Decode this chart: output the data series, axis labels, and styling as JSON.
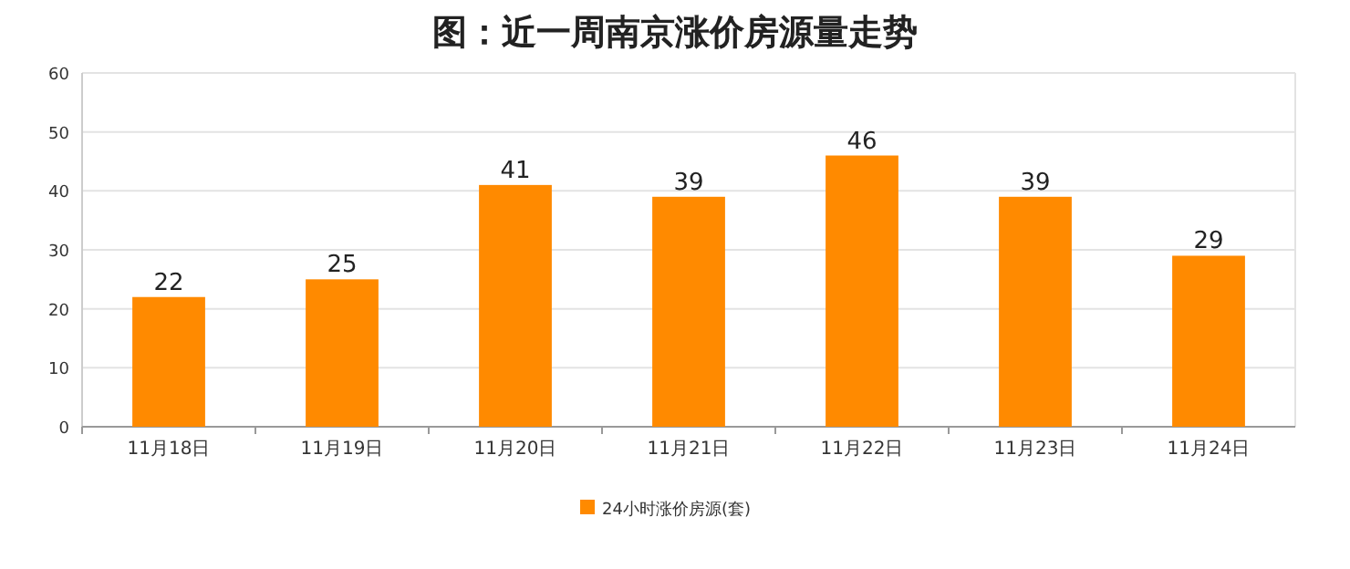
{
  "chart_data": {
    "type": "bar",
    "title": "图：近一周南京涨价房源量走势",
    "categories": [
      "11月18日",
      "11月19日",
      "11月20日",
      "11月21日",
      "11月22日",
      "11月23日",
      "11月24日"
    ],
    "series": [
      {
        "name": "24小时涨价房源(套)",
        "color": "#ff8a00",
        "values": [
          22,
          25,
          41,
          39,
          46,
          39,
          29
        ]
      }
    ],
    "ylim": [
      0,
      60
    ],
    "yticks": [
      0,
      10,
      20,
      30,
      40,
      50,
      60
    ],
    "grid": "y",
    "legend": "bottom",
    "data_labels": true
  }
}
